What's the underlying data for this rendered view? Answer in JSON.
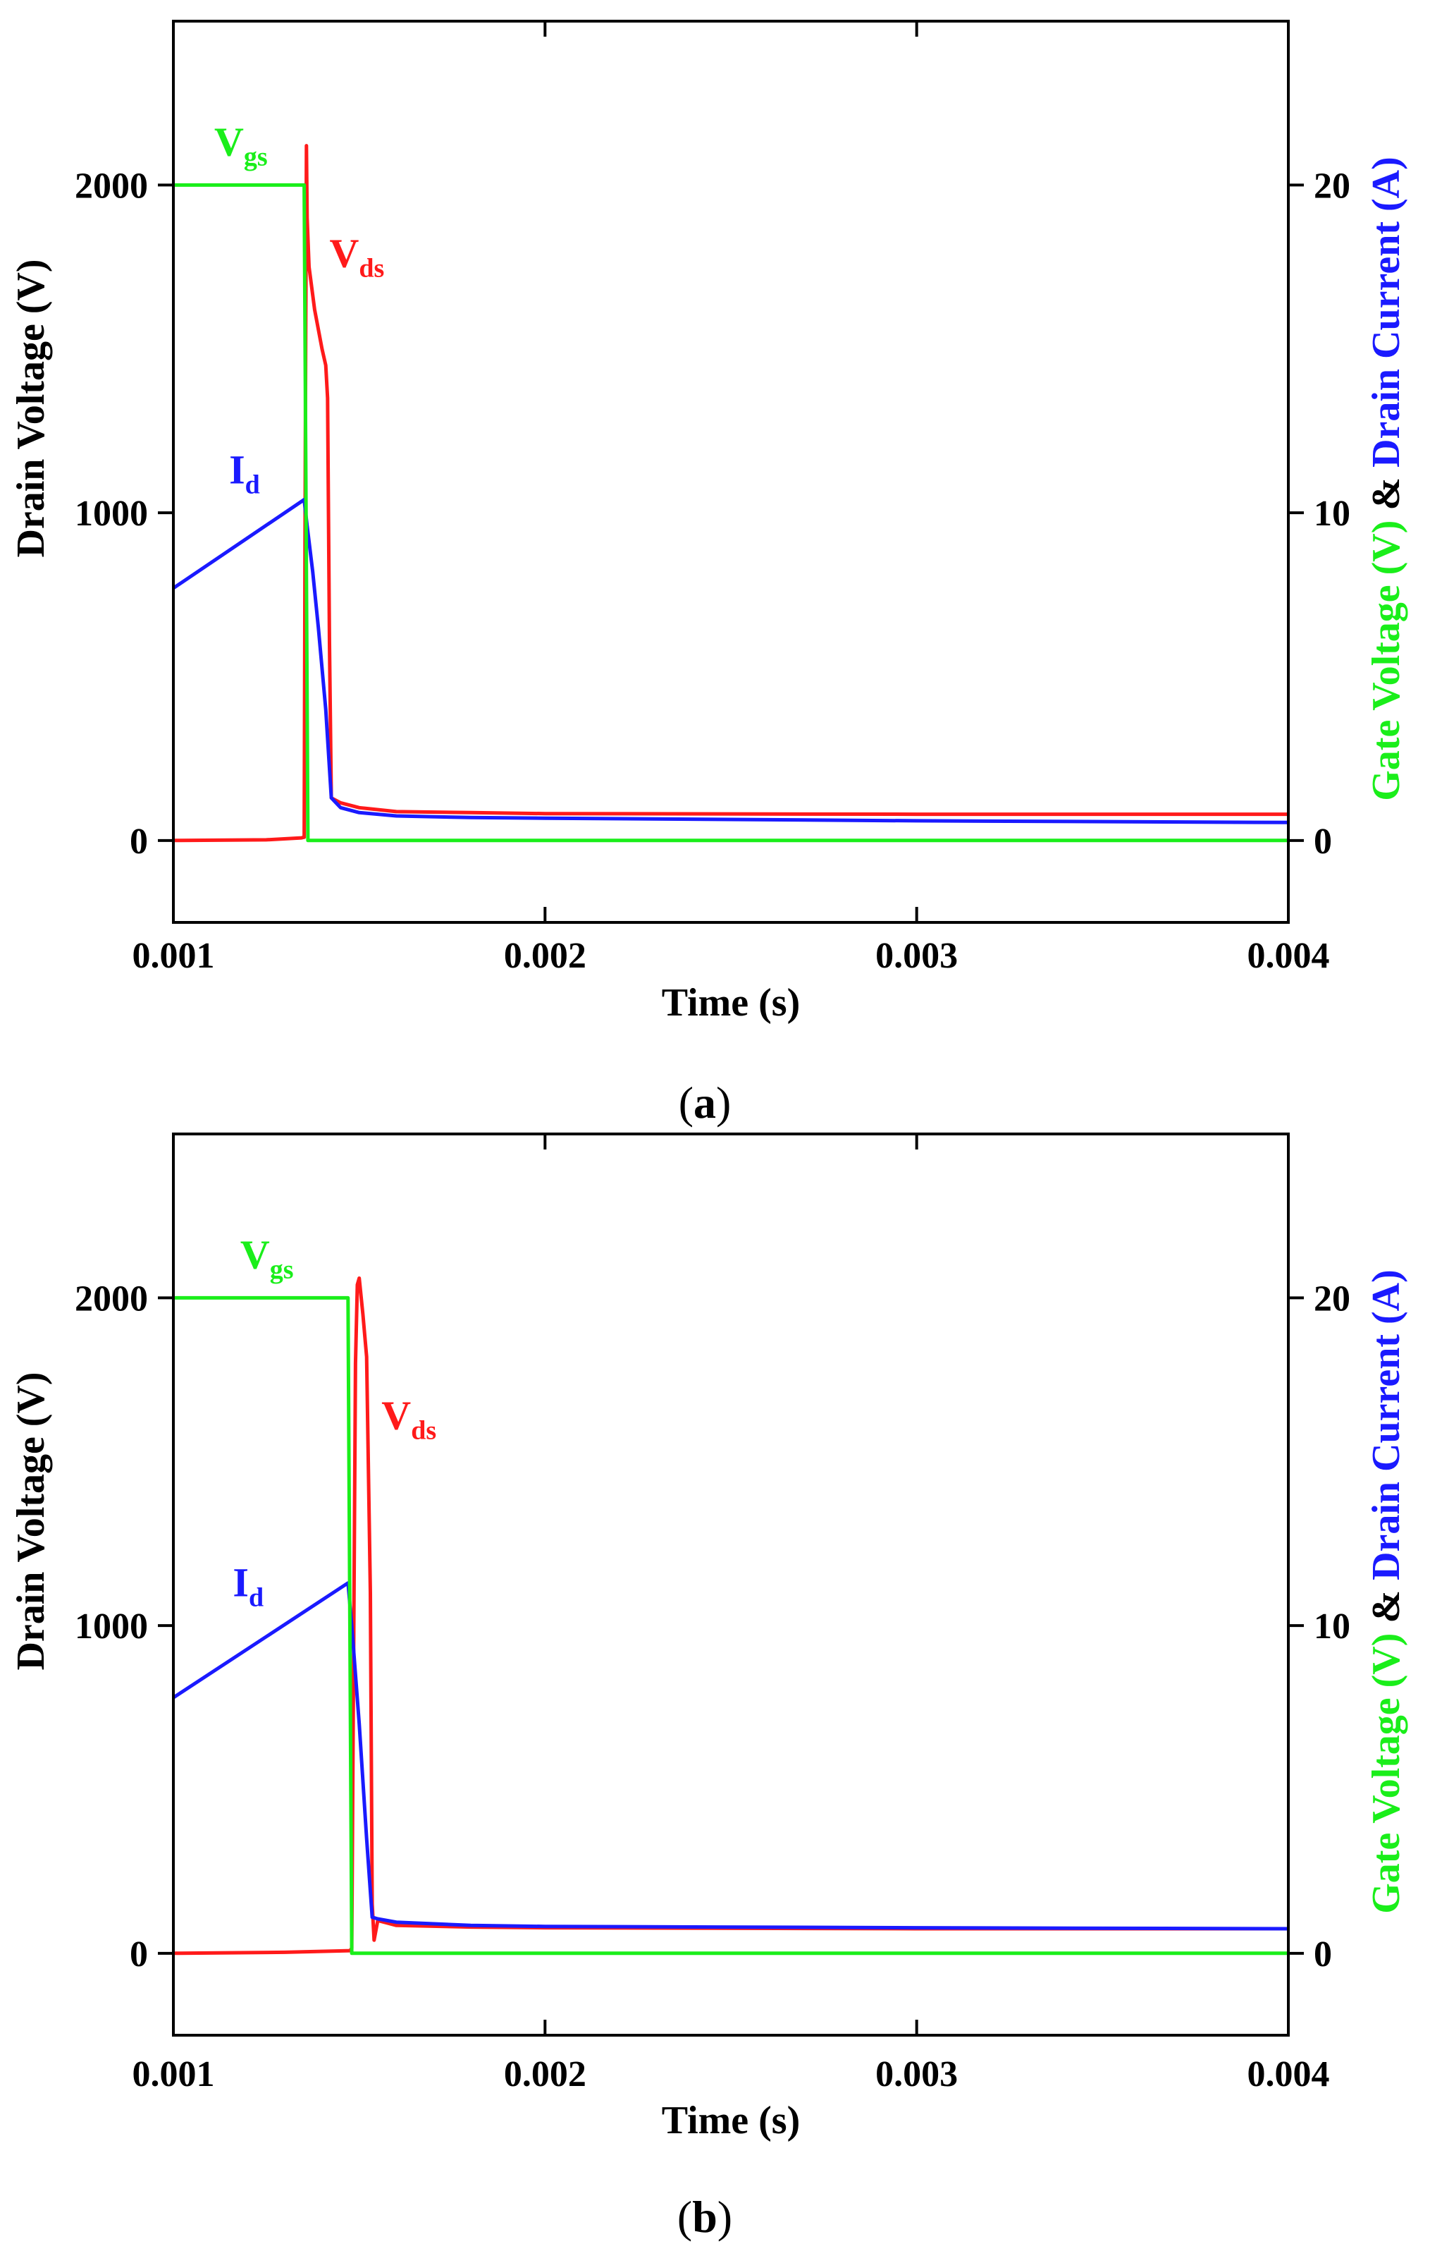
{
  "colors": {
    "vds": "#ff1a1a",
    "vgs": "#1aee1a",
    "id": "#1a1aff",
    "axis": "#000000"
  },
  "chart_data": [
    {
      "panel": "a",
      "type": "line",
      "caption_open": "(",
      "caption_letter": "a",
      "caption_close": ")",
      "xlabel": "Time (s)",
      "ylabel_left": "Drain Voltage (V)",
      "ylabel_right_parts": {
        "gate": "Gate Voltage (V)",
        "amp": " & ",
        "drain": "Drain Current (A)"
      },
      "xlim": [
        0.001,
        0.004
      ],
      "ylim_left": [
        -250,
        2500
      ],
      "ylim_right": [
        -2.5,
        25
      ],
      "x_ticks": [
        0.001,
        0.002,
        0.003,
        0.004
      ],
      "x_tick_labels": [
        "0.001",
        "0.002",
        "0.003",
        "0.004"
      ],
      "y_left_ticks": [
        0,
        1000,
        2000
      ],
      "y_left_tick_labels": [
        "0",
        "1000",
        "2000"
      ],
      "y_right_ticks": [
        0,
        10,
        20
      ],
      "y_right_tick_labels": [
        "0",
        "10",
        "20"
      ],
      "series": [
        {
          "name": "Vds",
          "label_main": "V",
          "label_sub": "ds",
          "axis": "left",
          "color_key": "vds",
          "label_at": [
            0.00142,
            1750
          ],
          "points": [
            [
              0.001,
              0
            ],
            [
              0.00125,
              2
            ],
            [
              0.001345,
              8
            ],
            [
              0.001352,
              10
            ],
            [
              0.001355,
              1200
            ],
            [
              0.001358,
              2120
            ],
            [
              0.00136,
              1900
            ],
            [
              0.001365,
              1750
            ],
            [
              0.00138,
              1620
            ],
            [
              0.0014,
              1500
            ],
            [
              0.00141,
              1450
            ],
            [
              0.001415,
              1350
            ],
            [
              0.00142,
              600
            ],
            [
              0.001425,
              130
            ],
            [
              0.00145,
              115
            ],
            [
              0.0015,
              100
            ],
            [
              0.0016,
              88
            ],
            [
              0.0018,
              85
            ],
            [
              0.002,
              82
            ],
            [
              0.003,
              80
            ],
            [
              0.004,
              80
            ]
          ]
        },
        {
          "name": "Vgs",
          "label_main": "V",
          "label_sub": "gs",
          "axis": "right",
          "color_key": "vgs",
          "label_at": [
            0.00111,
            20.9
          ],
          "points": [
            [
              0.001,
              20
            ],
            [
              0.001352,
              20
            ],
            [
              0.001362,
              0
            ],
            [
              0.004,
              0
            ]
          ]
        },
        {
          "name": "Id",
          "label_main": "I",
          "label_sub": "d",
          "axis": "right",
          "color_key": "id",
          "label_at": [
            0.00115,
            10.9
          ],
          "points": [
            [
              0.001,
              7.7
            ],
            [
              0.001352,
              10.4
            ],
            [
              0.00136,
              9.6
            ],
            [
              0.001375,
              8.2
            ],
            [
              0.00139,
              6.5
            ],
            [
              0.00141,
              4.0
            ],
            [
              0.001425,
              1.3
            ],
            [
              0.00145,
              1.0
            ],
            [
              0.0015,
              0.85
            ],
            [
              0.0016,
              0.75
            ],
            [
              0.0018,
              0.7
            ],
            [
              0.002,
              0.68
            ],
            [
              0.003,
              0.6
            ],
            [
              0.004,
              0.55
            ]
          ]
        }
      ]
    },
    {
      "panel": "b",
      "type": "line",
      "caption_open": "(",
      "caption_letter": "b",
      "caption_close": ")",
      "xlabel": "Time (s)",
      "ylabel_left": "Drain Voltage (V)",
      "ylabel_right_parts": {
        "gate": "Gate Voltage (V)",
        "amp": " & ",
        "drain": "Drain Current (A)"
      },
      "xlim": [
        0.001,
        0.004
      ],
      "ylim_left": [
        -250,
        2500
      ],
      "ylim_right": [
        -2.5,
        25
      ],
      "x_ticks": [
        0.001,
        0.002,
        0.003,
        0.004
      ],
      "x_tick_labels": [
        "0.001",
        "0.002",
        "0.003",
        "0.004"
      ],
      "y_left_ticks": [
        0,
        1000,
        2000
      ],
      "y_left_tick_labels": [
        "0",
        "1000",
        "2000"
      ],
      "y_right_ticks": [
        0,
        10,
        20
      ],
      "y_right_tick_labels": [
        "0",
        "10",
        "20"
      ],
      "series": [
        {
          "name": "Vds",
          "label_main": "V",
          "label_sub": "ds",
          "axis": "left",
          "color_key": "vds",
          "label_at": [
            0.00156,
            1600
          ],
          "points": [
            [
              0.001,
              0
            ],
            [
              0.0013,
              3
            ],
            [
              0.001475,
              8
            ],
            [
              0.00148,
              15
            ],
            [
              0.00149,
              1800
            ],
            [
              0.001495,
              2040
            ],
            [
              0.0015,
              2060
            ],
            [
              0.00151,
              1950
            ],
            [
              0.00152,
              1820
            ],
            [
              0.00153,
              1100
            ],
            [
              0.001535,
              150
            ],
            [
              0.00154,
              40
            ],
            [
              0.00155,
              100
            ],
            [
              0.0016,
              85
            ],
            [
              0.0018,
              80
            ],
            [
              0.002,
              78
            ],
            [
              0.003,
              75
            ],
            [
              0.004,
              75
            ]
          ]
        },
        {
          "name": "Vgs",
          "label_main": "V",
          "label_sub": "gs",
          "axis": "right",
          "color_key": "vgs",
          "label_at": [
            0.00118,
            20.9
          ],
          "points": [
            [
              0.001,
              20
            ],
            [
              0.00147,
              20
            ],
            [
              0.00148,
              0
            ],
            [
              0.004,
              0
            ]
          ]
        },
        {
          "name": "Id",
          "label_main": "I",
          "label_sub": "d",
          "axis": "right",
          "color_key": "id",
          "label_at": [
            0.00116,
            10.9
          ],
          "points": [
            [
              0.001,
              7.8
            ],
            [
              0.00147,
              11.3
            ],
            [
              0.00148,
              10.0
            ],
            [
              0.0015,
              7.0
            ],
            [
              0.00152,
              3.5
            ],
            [
              0.001535,
              1.1
            ],
            [
              0.00155,
              1.05
            ],
            [
              0.0016,
              0.95
            ],
            [
              0.0018,
              0.85
            ],
            [
              0.002,
              0.82
            ],
            [
              0.003,
              0.78
            ],
            [
              0.004,
              0.75
            ]
          ]
        }
      ]
    }
  ]
}
